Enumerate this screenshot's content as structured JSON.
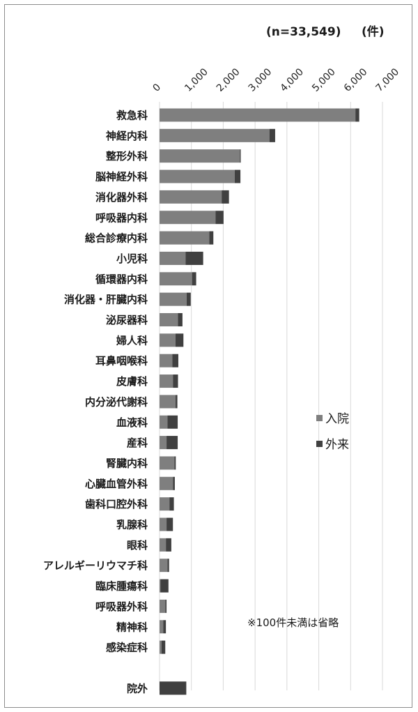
{
  "chart_data": {
    "type": "bar",
    "stacked": true,
    "orientation": "horizontal",
    "sample_label": "(n=33,549)",
    "unit_label": "(件)",
    "note": "※100件未満は省略",
    "xlim": [
      0,
      7000
    ],
    "ticks": [
      0,
      1000,
      2000,
      3000,
      4000,
      5000,
      6000,
      7000
    ],
    "tick_labels": [
      "0",
      "1,000",
      "2,000",
      "3,000",
      "4,000",
      "5,000",
      "6,000",
      "7,000"
    ],
    "grid": "vertical",
    "legend_position": "right-middle",
    "categories": [
      "救急科",
      "神経内科",
      "整形外科",
      "脳神経外科",
      "消化器外科",
      "呼吸器内科",
      "総合診療内科",
      "小児科",
      "循環器内科",
      "消化器・肝臓内科",
      "泌尿器科",
      "婦人科",
      "耳鼻咽喉科",
      "皮膚科",
      "内分泌代謝科",
      "血液科",
      "産科",
      "腎臓内科",
      "心臓血管外科",
      "歯科口腔外科",
      "乳腺科",
      "眼科",
      "アレルギーリウマチ科",
      "臨床腫瘍科",
      "呼吸器外科",
      "精神科",
      "感染症科",
      "",
      "院外"
    ],
    "series": [
      {
        "name": "入院",
        "color": "#7f7f7f",
        "values": [
          6150,
          3450,
          2520,
          2360,
          1950,
          1760,
          1560,
          820,
          1020,
          850,
          580,
          500,
          400,
          420,
          500,
          250,
          220,
          470,
          420,
          310,
          220,
          200,
          250,
          30,
          180,
          120,
          60,
          null,
          0
        ]
      },
      {
        "name": "外来",
        "color": "#404040",
        "values": [
          120,
          180,
          30,
          180,
          230,
          250,
          130,
          550,
          130,
          130,
          140,
          250,
          190,
          160,
          60,
          320,
          350,
          40,
          60,
          140,
          200,
          170,
          50,
          250,
          40,
          80,
          120,
          null,
          840
        ]
      }
    ]
  }
}
